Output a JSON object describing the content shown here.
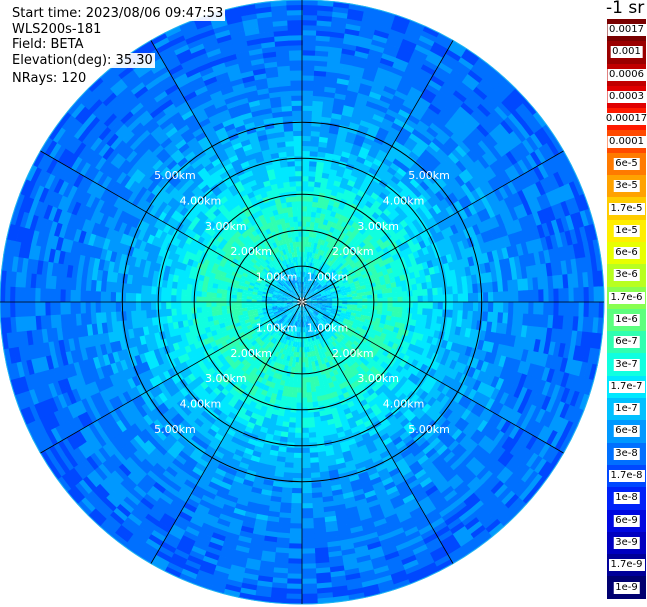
{
  "header": {
    "start_time": "Start time: 2023/08/06 09:47:53",
    "instrument": "WLS200s-181",
    "field": "Field: BETA",
    "elevation": "Elevation(deg): 35.30",
    "nrays": "NRays: 120"
  },
  "colorbar": {
    "unit_label": "-1 sr",
    "ticks": [
      "0.0017",
      "0.001",
      "0.0006",
      "0.0003",
      "0.00017",
      "0.0001",
      "6e-5",
      "3e-5",
      "1.7e-5",
      "1e-5",
      "6e-6",
      "3e-6",
      "1.7e-6",
      "1e-6",
      "6e-7",
      "3e-7",
      "1.7e-7",
      "1e-7",
      "6e-8",
      "3e-8",
      "1.7e-8",
      "1e-8",
      "6e-9",
      "3e-9",
      "1.7e-9",
      "1e-9"
    ],
    "colors": [
      "#7a0000",
      "#9a0000",
      "#c00000",
      "#e00000",
      "#ff1a00",
      "#ff4a00",
      "#ff7a00",
      "#ffa200",
      "#ffcc00",
      "#ffee00",
      "#e8ff00",
      "#b8ff20",
      "#88ff50",
      "#5cff7e",
      "#30ffb0",
      "#10ffe0",
      "#00e8ff",
      "#00c0ff",
      "#0098ff",
      "#0070ff",
      "#0048ff",
      "#0022f8",
      "#0008e0",
      "#0000c0",
      "#000098",
      "#000070"
    ]
  },
  "chart_data": {
    "type": "heatmap",
    "projection": "polar (PPI scan)",
    "field": "BETA",
    "instrument": "WLS200s-181",
    "start_time": "2023/08/06 09:47:53",
    "elevation_deg": 35.3,
    "nrays": 120,
    "range_rings_km": [
      1.0,
      2.0,
      3.0,
      4.0,
      5.0
    ],
    "range_ring_labels": [
      "1.00km",
      "2.00km",
      "3.00km",
      "4.00km",
      "5.00km"
    ],
    "max_range_km": 5.0,
    "radial_spokes_deg": [
      0,
      30,
      60,
      90,
      120,
      150,
      180,
      210,
      240,
      270,
      300,
      330
    ],
    "colorscale": "log10",
    "colorbar_range": [
      1e-09,
      0.0017
    ],
    "radial_profile": [
      {
        "range_km": 0.4,
        "value": 1e-07
      },
      {
        "range_km": 0.9,
        "value": 4e-07
      },
      {
        "range_km": 1.5,
        "value": 4e-07
      },
      {
        "range_km": 2.2,
        "value": 1.4e-07
      },
      {
        "range_km": 3.0,
        "value": 6e-08
      },
      {
        "range_km": 3.8,
        "value": 4e-08
      },
      {
        "range_km": 4.6,
        "value": 3e-08
      },
      {
        "range_km": 5.0,
        "value": 2.5e-08
      }
    ]
  }
}
